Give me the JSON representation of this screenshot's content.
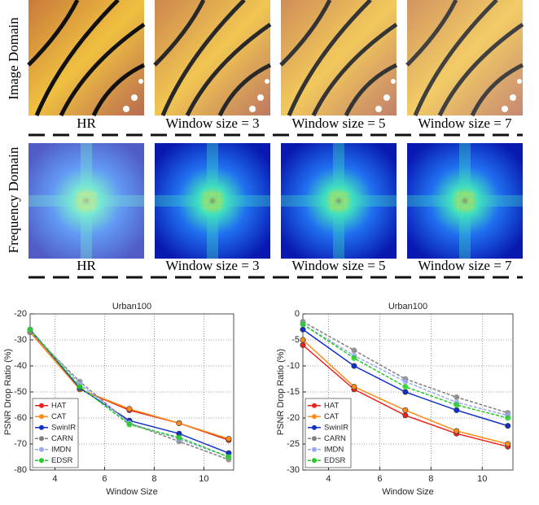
{
  "figure": {
    "row_labels": [
      "Image Domain",
      "Frequency Domain"
    ],
    "image_captions": [
      "HR",
      "Window size = 3",
      "Window size = 5",
      "Window size = 7"
    ],
    "frequency_captions": [
      "HR",
      "Window size = 3",
      "Window size = 5",
      "Window size = 7"
    ]
  },
  "chart_data": [
    {
      "type": "line",
      "title": "Urban100",
      "x_label": "Window Size",
      "y_label": "PSNR Drop Ratio (%)",
      "x": [
        3,
        5,
        7,
        9,
        11
      ],
      "xlim": [
        3,
        11.2
      ],
      "xticks": [
        4,
        6,
        8,
        10
      ],
      "ylim": [
        -80,
        -20
      ],
      "yticks": [
        -80,
        -70,
        -60,
        -50,
        -40,
        -30,
        -20
      ],
      "grid": true,
      "legend": "lower left",
      "series": [
        {
          "name": "HAT",
          "color": "#e8221e",
          "dashed": false,
          "values": [
            -27,
            -49,
            -57,
            -62,
            -68.5
          ]
        },
        {
          "name": "CAT",
          "color": "#ff8c1a",
          "dashed": false,
          "values": [
            -27,
            -49,
            -56.5,
            -62,
            -68
          ]
        },
        {
          "name": "SwinIR",
          "color": "#1030c8",
          "dashed": false,
          "values": [
            -26,
            -48.5,
            -61,
            -66,
            -73.5
          ]
        },
        {
          "name": "CARN",
          "color": "#808080",
          "dashed": true,
          "values": [
            -27,
            -46,
            -62,
            -69,
            -76
          ]
        },
        {
          "name": "IMDN",
          "color": "#99a8f0",
          "dashed": true,
          "values": [
            -26,
            -47,
            -62,
            -68,
            -75
          ]
        },
        {
          "name": "EDSR",
          "color": "#22cc22",
          "dashed": true,
          "values": [
            -26,
            -48,
            -62.5,
            -67.5,
            -75
          ]
        }
      ]
    },
    {
      "type": "line",
      "title": "Urban100",
      "x_label": "Window Size",
      "y_label": "PSNR Drop Ratio (%)",
      "x": [
        3,
        5,
        7,
        9,
        11
      ],
      "xlim": [
        3,
        11.2
      ],
      "xticks": [
        4,
        6,
        8,
        10
      ],
      "ylim": [
        -30,
        0
      ],
      "yticks": [
        -30,
        -25,
        -20,
        -15,
        -10,
        -5,
        0
      ],
      "grid": true,
      "legend": "lower left",
      "series": [
        {
          "name": "HAT",
          "color": "#e8221e",
          "dashed": false,
          "values": [
            -6,
            -14.5,
            -19.5,
            -23,
            -25.5
          ]
        },
        {
          "name": "CAT",
          "color": "#ff8c1a",
          "dashed": false,
          "values": [
            -5,
            -14,
            -18.5,
            -22.5,
            -25
          ]
        },
        {
          "name": "SwinIR",
          "color": "#1030c8",
          "dashed": false,
          "values": [
            -3,
            -10,
            -15,
            -18.5,
            -21.5
          ]
        },
        {
          "name": "CARN",
          "color": "#808080",
          "dashed": true,
          "values": [
            -1.5,
            -7,
            -12.5,
            -16,
            -19
          ]
        },
        {
          "name": "IMDN",
          "color": "#99a8f0",
          "dashed": true,
          "values": [
            -2,
            -8,
            -13,
            -17,
            -19.5
          ]
        },
        {
          "name": "EDSR",
          "color": "#22cc22",
          "dashed": true,
          "values": [
            -2,
            -8.5,
            -14,
            -17.5,
            -20
          ]
        }
      ]
    }
  ]
}
